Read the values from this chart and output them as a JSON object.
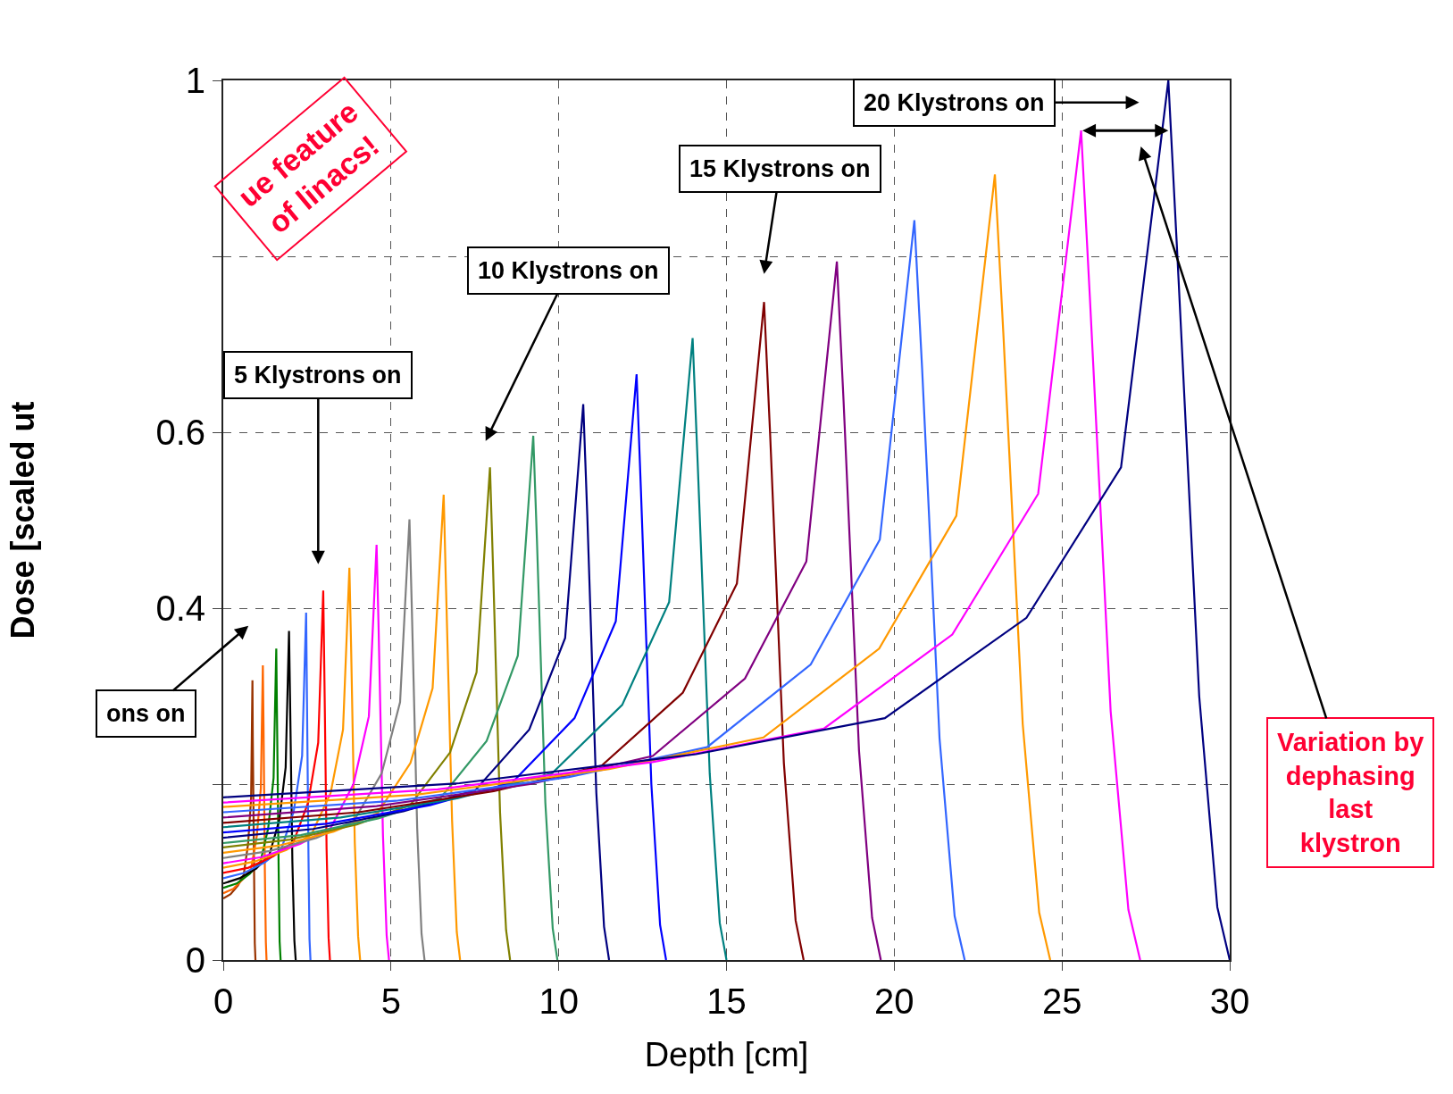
{
  "chart_data": {
    "type": "line",
    "xlabel": "Depth [cm]",
    "ylabel": "Dose [scaled ut",
    "xlim": [
      0,
      30
    ],
    "ylim": [
      0,
      1
    ],
    "xticks": [
      0,
      5,
      10,
      15,
      20,
      25,
      30
    ],
    "yticks": [
      0,
      {
        "value": 0.2,
        "label": null
      },
      0.4,
      0.6,
      {
        "value": 0.8,
        "label": null
      },
      1
    ],
    "grid": true,
    "annotations": [
      "ons on",
      "5 Klystrons on",
      "10 Klystrons on",
      "15 Klystrons on",
      "20 Klystrons on",
      "Variation by\ndephasing\nlast\nklystron",
      "ue feature\nof linacs!"
    ],
    "series": [
      {
        "color": "#993300",
        "x": [
          0,
          0.22,
          0.44,
          0.61,
          0.74,
          0.83,
          0.87,
          0.88,
          0.92,
          0.94,
          0.96
        ],
        "values": [
          0.07,
          0.075,
          0.085,
          0.097,
          0.132,
          0.184,
          0.318,
          0.254,
          0.095,
          0.019,
          0
        ]
      },
      {
        "color": "#ff6600",
        "x": [
          0,
          0.3,
          0.59,
          0.83,
          1.0,
          1.12,
          1.18,
          1.2,
          1.24,
          1.27,
          1.29
        ],
        "values": [
          0.076,
          0.081,
          0.092,
          0.104,
          0.141,
          0.195,
          0.335,
          0.268,
          0.101,
          0.02,
          0
        ]
      },
      {
        "color": "#008000",
        "x": [
          0,
          0.4,
          0.79,
          1.11,
          1.34,
          1.5,
          1.58,
          1.6,
          1.65,
          1.68,
          1.71
        ],
        "values": [
          0.082,
          0.087,
          0.098,
          0.112,
          0.15,
          0.207,
          0.354,
          0.283,
          0.106,
          0.021,
          0
        ]
      },
      {
        "color": "#000000",
        "x": [
          0,
          0.49,
          0.98,
          1.37,
          1.67,
          1.86,
          1.96,
          1.99,
          2.06,
          2.12,
          2.16
        ],
        "values": [
          0.087,
          0.093,
          0.104,
          0.119,
          0.159,
          0.219,
          0.374,
          0.299,
          0.112,
          0.022,
          0
        ]
      },
      {
        "color": "#3366ff",
        "x": [
          0,
          0.62,
          1.24,
          1.73,
          2.1,
          2.35,
          2.47,
          2.49,
          2.54,
          2.57,
          2.6
        ],
        "values": [
          0.093,
          0.099,
          0.111,
          0.126,
          0.169,
          0.232,
          0.395,
          0.316,
          0.119,
          0.024,
          0
        ]
      },
      {
        "color": "#ff0000",
        "x": [
          0,
          0.75,
          1.49,
          2.09,
          2.53,
          2.83,
          2.98,
          3.01,
          3.08,
          3.14,
          3.18
        ],
        "values": [
          0.099,
          0.105,
          0.118,
          0.134,
          0.179,
          0.247,
          0.42,
          0.336,
          0.126,
          0.025,
          0
        ]
      },
      {
        "color": "#ff9900",
        "x": [
          0,
          0.94,
          1.88,
          2.63,
          3.2,
          3.57,
          3.76,
          3.81,
          3.92,
          4.02,
          4.08
        ],
        "values": [
          0.105,
          0.112,
          0.125,
          0.143,
          0.19,
          0.262,
          0.446,
          0.357,
          0.134,
          0.027,
          0
        ]
      },
      {
        "color": "#ff00ff",
        "x": [
          0,
          1.14,
          2.29,
          3.2,
          3.88,
          4.34,
          4.57,
          4.63,
          4.76,
          4.87,
          4.94
        ],
        "values": [
          0.11,
          0.117,
          0.132,
          0.15,
          0.2,
          0.277,
          0.472,
          0.378,
          0.142,
          0.028,
          0
        ]
      },
      {
        "color": "#808080",
        "x": [
          0,
          1.39,
          2.78,
          3.89,
          4.72,
          5.27,
          5.55,
          5.62,
          5.78,
          5.91,
          6.0
        ],
        "values": [
          0.116,
          0.124,
          0.139,
          0.158,
          0.212,
          0.293,
          0.501,
          0.401,
          0.15,
          0.03,
          0
        ]
      },
      {
        "color": "#ff9900",
        "x": [
          0,
          1.64,
          3.29,
          4.6,
          5.58,
          6.24,
          6.57,
          6.64,
          6.82,
          6.96,
          7.06
        ],
        "values": [
          0.122,
          0.13,
          0.146,
          0.167,
          0.224,
          0.309,
          0.529,
          0.423,
          0.159,
          0.032,
          0
        ]
      },
      {
        "color": "#808000",
        "x": [
          0,
          1.99,
          3.98,
          5.57,
          6.76,
          7.55,
          7.95,
          8.04,
          8.25,
          8.43,
          8.55
        ],
        "values": [
          0.128,
          0.137,
          0.154,
          0.176,
          0.236,
          0.327,
          0.56,
          0.448,
          0.168,
          0.034,
          0
        ]
      },
      {
        "color": "#339966",
        "x": [
          0,
          2.31,
          4.62,
          6.47,
          7.85,
          8.78,
          9.24,
          9.35,
          9.6,
          9.82,
          9.96
        ],
        "values": [
          0.133,
          0.142,
          0.161,
          0.184,
          0.249,
          0.346,
          0.596,
          0.477,
          0.179,
          0.036,
          0
        ]
      },
      {
        "color": "#000080",
        "x": [
          0,
          2.68,
          5.37,
          7.51,
          9.12,
          10.19,
          10.73,
          10.85,
          11.12,
          11.35,
          11.5
        ],
        "values": [
          0.139,
          0.149,
          0.169,
          0.193,
          0.262,
          0.366,
          0.632,
          0.506,
          0.19,
          0.038,
          0
        ]
      },
      {
        "color": "#0000ff",
        "x": [
          0,
          3.08,
          6.16,
          8.62,
          10.47,
          11.7,
          12.32,
          12.45,
          12.76,
          13.02,
          13.2
        ],
        "values": [
          0.145,
          0.155,
          0.176,
          0.202,
          0.275,
          0.385,
          0.666,
          0.533,
          0.2,
          0.04,
          0
        ]
      },
      {
        "color": "#008080",
        "x": [
          0,
          3.5,
          7.0,
          9.79,
          11.89,
          13.29,
          13.99,
          14.14,
          14.5,
          14.8,
          15.0
        ],
        "values": [
          0.151,
          0.162,
          0.184,
          0.212,
          0.29,
          0.407,
          0.707,
          0.566,
          0.212,
          0.042,
          0
        ]
      },
      {
        "color": "#800000",
        "x": [
          0,
          4.03,
          8.06,
          11.28,
          13.7,
          15.31,
          16.12,
          16.3,
          16.71,
          17.06,
          17.3
        ],
        "values": [
          0.156,
          0.168,
          0.192,
          0.221,
          0.304,
          0.428,
          0.748,
          0.598,
          0.224,
          0.045,
          0
        ]
      },
      {
        "color": "#800080",
        "x": [
          0,
          4.57,
          9.15,
          12.8,
          15.55,
          17.38,
          18.29,
          18.49,
          18.95,
          19.34,
          19.6
        ],
        "values": [
          0.162,
          0.175,
          0.2,
          0.232,
          0.32,
          0.453,
          0.794,
          0.635,
          0.238,
          0.048,
          0
        ]
      },
      {
        "color": "#3366ff",
        "x": [
          0,
          5.15,
          10.3,
          14.42,
          17.51,
          19.57,
          20.6,
          20.83,
          21.35,
          21.8,
          22.1
        ],
        "values": [
          0.168,
          0.181,
          0.208,
          0.242,
          0.336,
          0.478,
          0.841,
          0.673,
          0.252,
          0.05,
          0
        ]
      },
      {
        "color": "#ff9900",
        "x": [
          0,
          5.75,
          11.5,
          16.1,
          19.55,
          21.85,
          23.0,
          23.25,
          23.83,
          24.32,
          24.65
        ],
        "values": [
          0.174,
          0.188,
          0.217,
          0.253,
          0.354,
          0.505,
          0.893,
          0.714,
          0.268,
          0.054,
          0
        ]
      },
      {
        "color": "#ff00ff",
        "x": [
          0,
          6.39,
          12.79,
          17.9,
          21.73,
          24.29,
          25.57,
          25.83,
          26.45,
          26.98,
          27.33
        ],
        "values": [
          0.179,
          0.194,
          0.225,
          0.263,
          0.37,
          0.53,
          0.943,
          0.754,
          0.283,
          0.057,
          0
        ]
      },
      {
        "color": "#000080",
        "x": [
          0,
          7.04,
          14.09,
          19.72,
          23.94,
          26.76,
          28.17,
          28.44,
          29.09,
          29.63,
          30
        ],
        "values": [
          0.185,
          0.201,
          0.234,
          0.275,
          0.389,
          0.56,
          1.0,
          0.8,
          0.3,
          0.06,
          0
        ]
      }
    ]
  }
}
